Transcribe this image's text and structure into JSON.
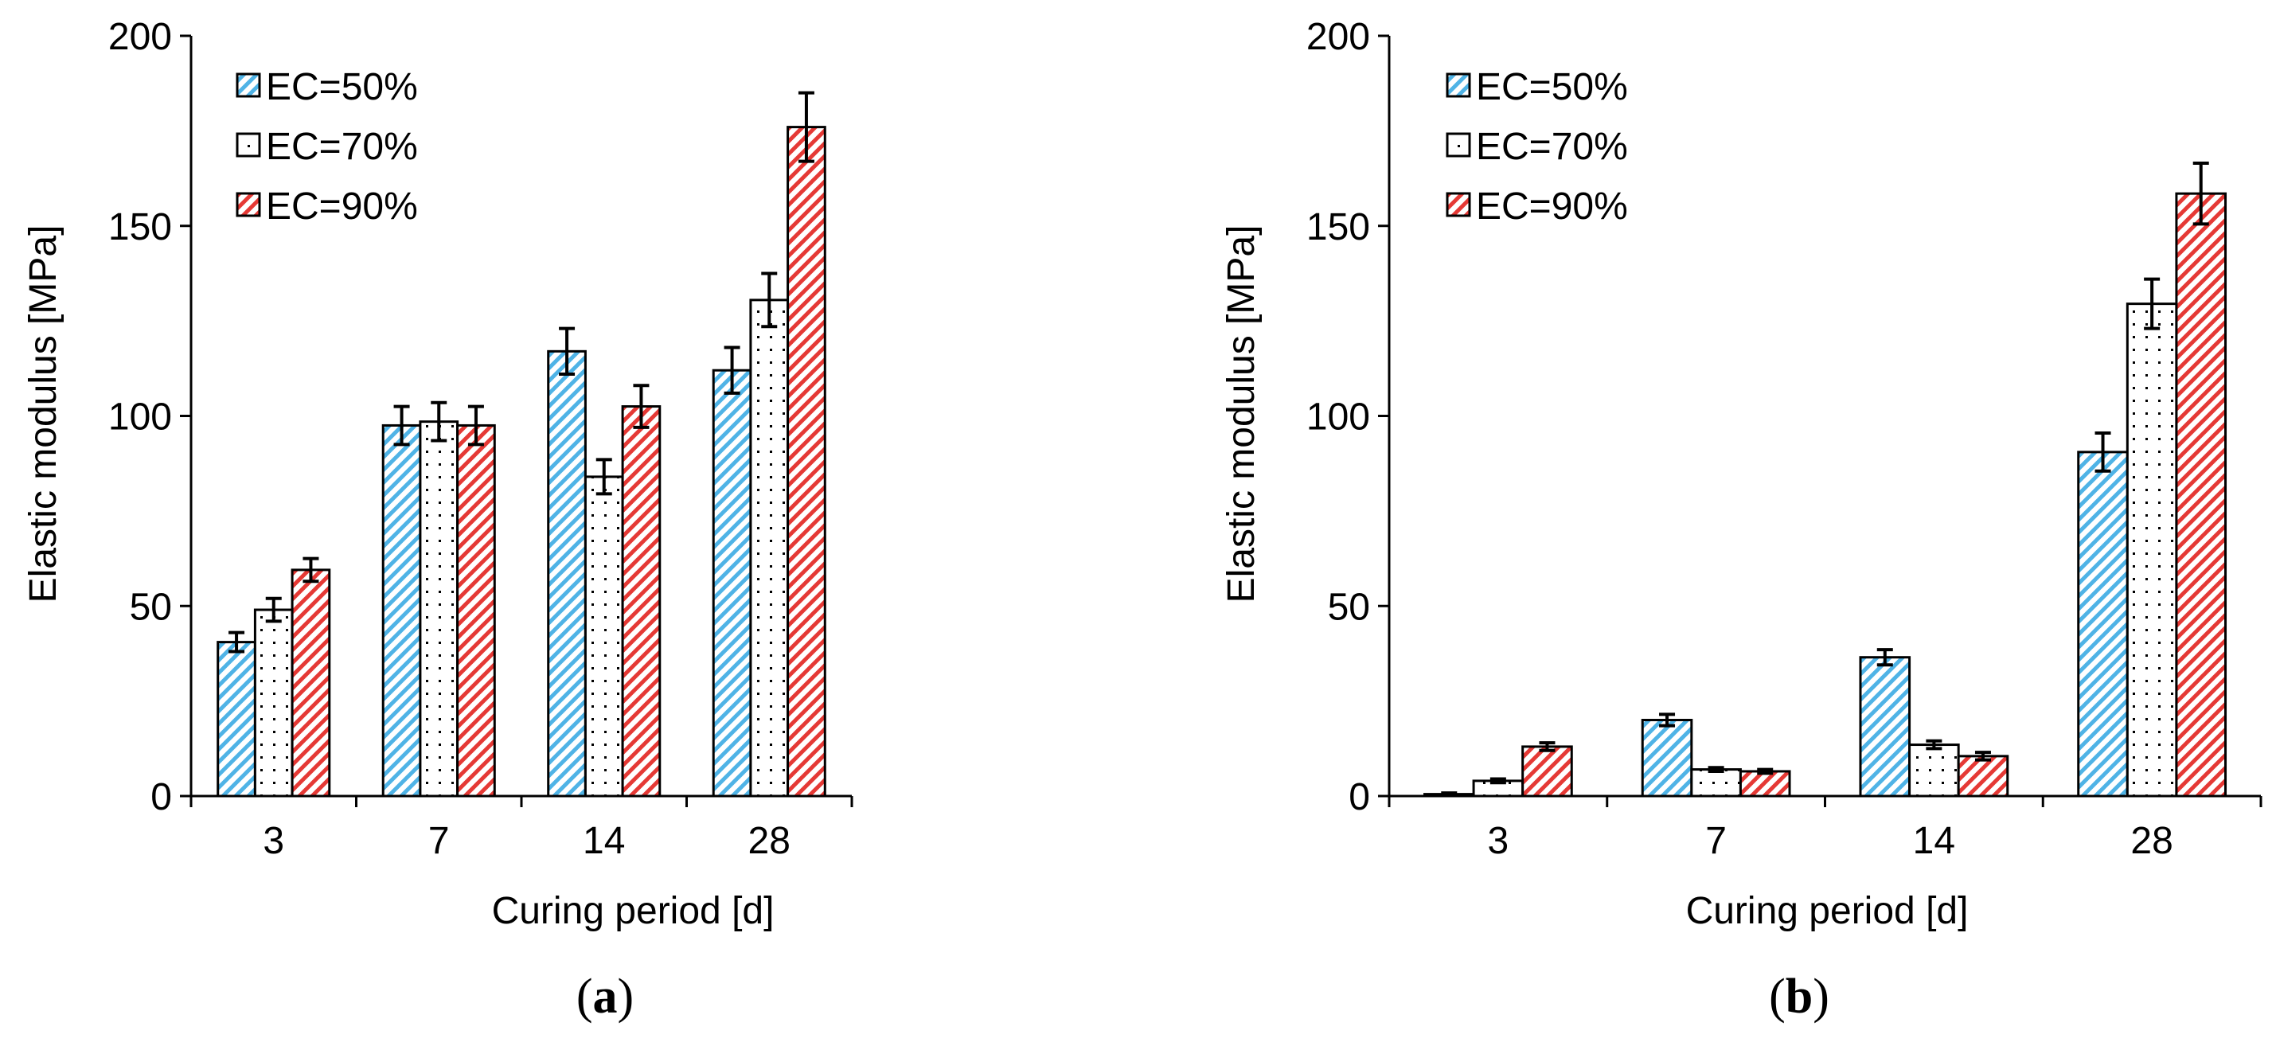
{
  "colors": {
    "ec50": "#4fb3e6",
    "ec70": "#000000",
    "ec90": "#e53935",
    "axis": "#000000",
    "bar_border": "#000000"
  },
  "chart_data": [
    {
      "type": "bar",
      "panel": "(a)",
      "panel_open": "(",
      "panel_letter": "a",
      "panel_close": ")",
      "categories": [
        "3",
        "7",
        "14",
        "28"
      ],
      "xlabel": "Curing period [d]",
      "ylabel": "Elastic modulus [MPa]",
      "ylim": [
        0,
        200
      ],
      "yticks": [
        "0",
        "50",
        "100",
        "150",
        "200"
      ],
      "legend_position": "top-left",
      "series": [
        {
          "name": "EC=50%",
          "pattern": "ec50",
          "values": [
            40.5,
            97.5,
            117,
            112
          ],
          "errors": [
            2.5,
            5,
            6,
            6
          ]
        },
        {
          "name": "EC=70%",
          "pattern": "ec70",
          "values": [
            49,
            98.5,
            84,
            130.5
          ],
          "errors": [
            3,
            5,
            4.5,
            7
          ]
        },
        {
          "name": "EC=90%",
          "pattern": "ec90",
          "values": [
            59.5,
            97.5,
            102.5,
            176
          ],
          "errors": [
            3,
            5,
            5.5,
            9
          ]
        }
      ]
    },
    {
      "type": "bar",
      "panel": "(b)",
      "panel_open": "(",
      "panel_letter": "b",
      "panel_close": ")",
      "categories": [
        "3",
        "7",
        "14",
        "28"
      ],
      "xlabel": "Curing period [d]",
      "ylabel": "Elastic modulus [MPa]",
      "ylim": [
        0,
        200
      ],
      "yticks": [
        "0",
        "50",
        "100",
        "150",
        "200"
      ],
      "legend_position": "top-left",
      "series": [
        {
          "name": "EC=50%",
          "pattern": "ec50",
          "values": [
            0.5,
            20,
            36.5,
            90.5
          ],
          "errors": [
            0.3,
            1.5,
            2,
            5
          ]
        },
        {
          "name": "EC=70%",
          "pattern": "ec70",
          "values": [
            4,
            7,
            13.5,
            129.5
          ],
          "errors": [
            0.5,
            0.5,
            1,
            6.5
          ]
        },
        {
          "name": "EC=90%",
          "pattern": "ec90",
          "values": [
            13,
            6.5,
            10.5,
            158.5
          ],
          "errors": [
            1,
            0.5,
            1,
            8
          ]
        }
      ]
    }
  ]
}
